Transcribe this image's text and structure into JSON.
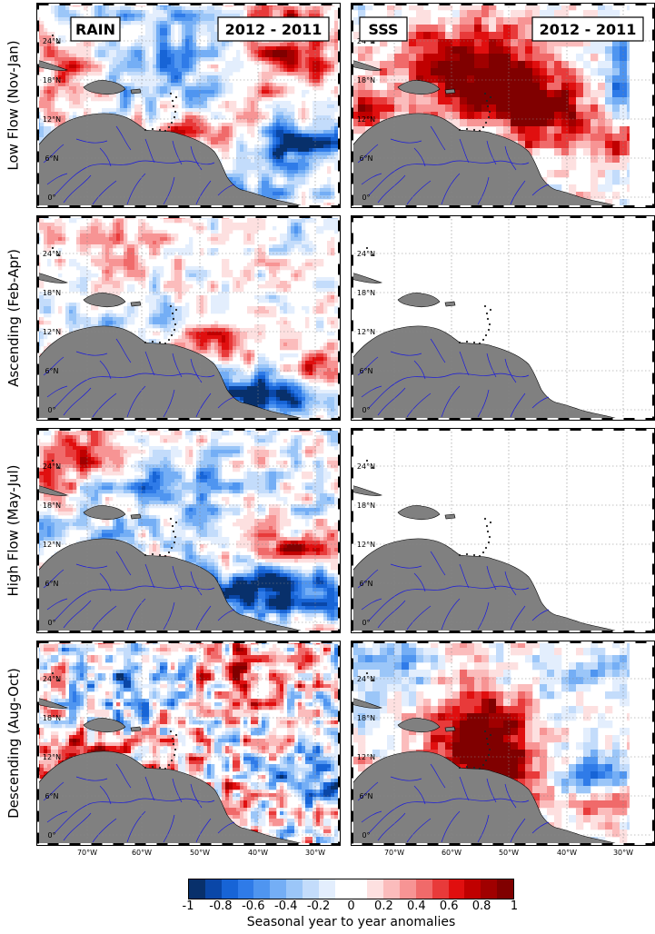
{
  "figure": {
    "rows": [
      {
        "label": "Low Flow (Nov-Jan)",
        "rain": {
          "pattern": "lowflow_rain"
        },
        "sss": {
          "pattern": "lowflow_sss"
        }
      },
      {
        "label": "Ascending (Feb-Apr)",
        "rain": {
          "pattern": "ascending_rain"
        },
        "sss": {
          "pattern": "empty"
        }
      },
      {
        "label": "High Flow (May-Jul)",
        "rain": {
          "pattern": "highflow_rain"
        },
        "sss": {
          "pattern": "empty"
        }
      },
      {
        "label": "Descending (Aug-Oct)",
        "rain": {
          "pattern": "descending_rain"
        },
        "sss": {
          "pattern": "descending_sss"
        }
      }
    ],
    "columns": {
      "rain": {
        "variable_label": "RAIN",
        "period_label": "2012 - 2011"
      },
      "sss": {
        "variable_label": "SSS",
        "period_label": "2012 - 2011"
      }
    },
    "latitude_ticks": [
      "24°N",
      "18°N",
      "12°N",
      "6°N",
      "0°"
    ],
    "longitude_ticks": [
      "70°W",
      "60°W",
      "50°W",
      "40°W",
      "30°W"
    ],
    "colors": {
      "land": "#808080",
      "rivers": "#1a1adc",
      "grid": "#888888"
    }
  },
  "colorbar": {
    "tick_labels": [
      "-1",
      "-0.8",
      "-0.6",
      "-0.4",
      "-0.2",
      "0",
      "0.2",
      "0.4",
      "0.6",
      "0.8",
      "1"
    ],
    "range": [
      -1,
      1
    ],
    "label": "Seasonal year to year anomalies",
    "colors": [
      "#08306b",
      "#0a47a8",
      "#1764d6",
      "#2f7be8",
      "#4f95f0",
      "#74aef5",
      "#9bc6f8",
      "#c3dcfb",
      "#e3eefd",
      "#ffffff",
      "#ffffff",
      "#fde0e0",
      "#fbbcbc",
      "#f79494",
      "#f06a6a",
      "#e83a3a",
      "#e00f0f",
      "#c00000",
      "#a00000",
      "#800000"
    ]
  }
}
